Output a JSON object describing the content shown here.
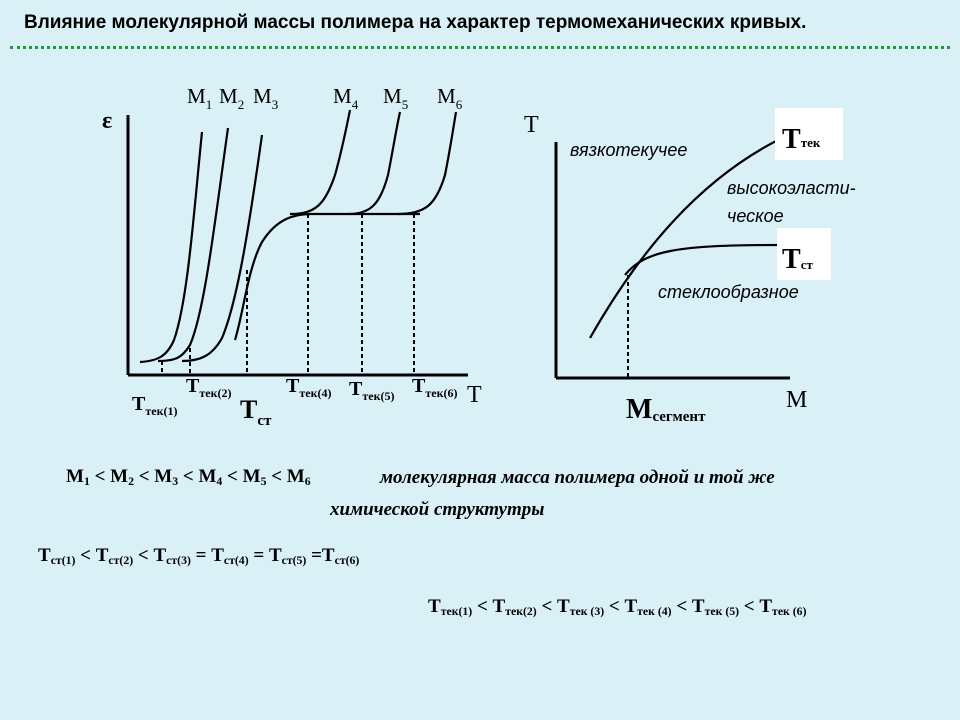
{
  "slide": {
    "title": "Влияние молекулярной массы полимера на характер термомеханических кривых."
  },
  "left_chart": {
    "y_axis_symbol": "ε",
    "x_axis_symbol": "T",
    "curve_labels": [
      {
        "main": "M",
        "sub": "1"
      },
      {
        "main": "M",
        "sub": "2"
      },
      {
        "main": "M",
        "sub": "3"
      },
      {
        "main": "M",
        "sub": "4"
      },
      {
        "main": "M",
        "sub": "5"
      },
      {
        "main": "M",
        "sub": "6"
      }
    ],
    "temp_labels": [
      {
        "main": "T",
        "sub": "тек(1)"
      },
      {
        "main": "T",
        "sub": "тек(2)"
      },
      {
        "main": "T",
        "sub": "ст"
      },
      {
        "main": "T",
        "sub": "тек(4)"
      },
      {
        "main": "T",
        "sub": "тек(5)"
      },
      {
        "main": "T",
        "sub": "тек(6)"
      }
    ]
  },
  "right_chart": {
    "y_axis_symbol": "T",
    "x_axis_symbol": "M",
    "region_viscous": "вязкотекучее",
    "region_elastic_1": "высокоэласти-",
    "region_elastic_2": "ческое",
    "region_glassy": "стеклообразное",
    "t_flow": {
      "main": "T",
      "sub": "тек"
    },
    "t_glass": {
      "main": "T",
      "sub": "ст"
    },
    "m_segment": {
      "main": "M",
      "sub": "сегмент"
    }
  },
  "relations": {
    "mass_order": [
      "M",
      "1",
      " < M",
      "2",
      " < M",
      "3",
      " < M",
      "4",
      " < M",
      "5",
      " < M",
      "6"
    ],
    "mass_desc_1": "молекулярная масса полимера одной и той же",
    "mass_desc_2": "химической структутры",
    "glass_order": [
      "T",
      "ст(1)",
      " < T",
      "ст(2)",
      " < T",
      "ст(3)",
      " = T",
      "ст(4)",
      " = T",
      "ст(5)",
      " =T",
      "ст(6)"
    ],
    "flow_order": [
      "T",
      "тек(1)",
      " < T",
      "тек(2)",
      " < T",
      "тек (3)",
      " < T",
      "тек (4)",
      " < T",
      "тек (5)",
      " < T",
      "тек (6)"
    ]
  }
}
